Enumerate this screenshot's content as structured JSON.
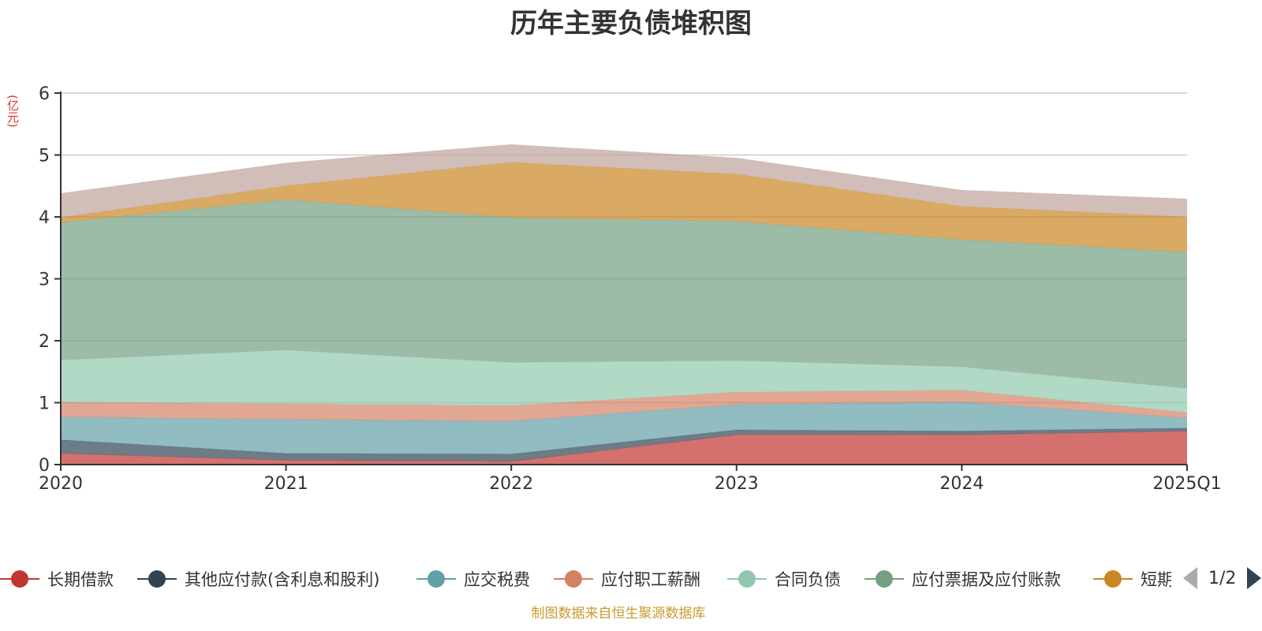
{
  "title": "历年主要负债堆积图",
  "unit": "(亿元)",
  "source": "制图数据来自恒生聚源数据库",
  "pager": {
    "text": "1/2"
  },
  "chart_data": {
    "type": "area",
    "stacked": true,
    "categories": [
      "2020",
      "2021",
      "2022",
      "2023",
      "2024",
      "2025Q1"
    ],
    "ylim": [
      0,
      6
    ],
    "yticks": [
      "0",
      "1",
      "2",
      "3",
      "4",
      "5",
      "6"
    ],
    "grid": true,
    "legend_position": "bottom",
    "series": [
      {
        "name": "长期借款",
        "color": "#c23531",
        "values": [
          0.18,
          0.07,
          0.05,
          0.48,
          0.48,
          0.54
        ]
      },
      {
        "name": "其他应付款(含利息和股利)",
        "color": "#2f4554",
        "values": [
          0.22,
          0.11,
          0.12,
          0.08,
          0.06,
          0.05
        ]
      },
      {
        "name": "应交税费",
        "color": "#61a0a8",
        "values": [
          0.37,
          0.55,
          0.53,
          0.41,
          0.47,
          0.16
        ]
      },
      {
        "name": "应付职工薪酬",
        "color": "#d48265",
        "values": [
          0.24,
          0.25,
          0.25,
          0.2,
          0.19,
          0.09
        ]
      },
      {
        "name": "合同负债",
        "color": "#91c7ae",
        "values": [
          0.68,
          0.87,
          0.7,
          0.51,
          0.38,
          0.39
        ]
      },
      {
        "name": "应付票据及应付账款",
        "color": "#749f83",
        "values": [
          2.22,
          2.43,
          2.34,
          2.25,
          2.05,
          2.2
        ]
      },
      {
        "name": "短期借款",
        "color": "#ca8622",
        "values": [
          0.08,
          0.22,
          0.89,
          0.76,
          0.54,
          0.57
        ]
      },
      {
        "name": "",
        "color": "#bda29a",
        "values": [
          0.39,
          0.37,
          0.29,
          0.26,
          0.26,
          0.29
        ]
      }
    ]
  }
}
